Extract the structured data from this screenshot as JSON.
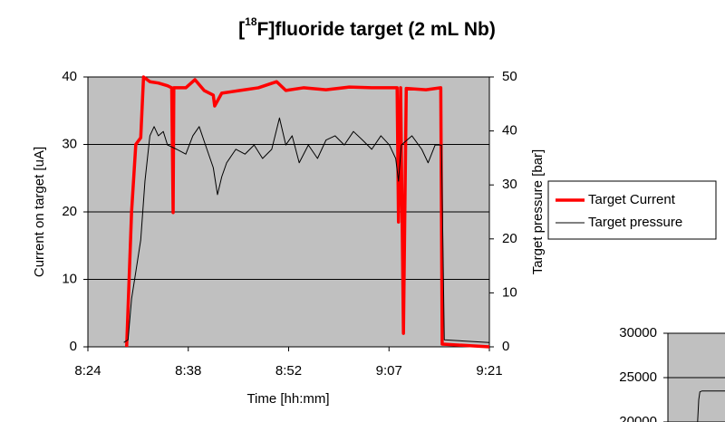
{
  "chart_data": [
    {
      "type": "line",
      "title": [
        "[",
        "18",
        "F]fluoride target (2 mL Nb)"
      ],
      "x_label": "Time [hh:mm]",
      "y_label": "Current on target [uA]",
      "y2_label": "Target pressure [bar]",
      "xlim": [
        504,
        561
      ],
      "xticks": [
        {
          "value": 504,
          "label": "8:24"
        },
        {
          "value": 518.25,
          "label": "8:38"
        },
        {
          "value": 532.5,
          "label": "8:52"
        },
        {
          "value": 546.75,
          "label": "9:07"
        },
        {
          "value": 561,
          "label": "9:21"
        }
      ],
      "ylim": [
        0,
        40
      ],
      "yticks": [
        0,
        10,
        20,
        30,
        40
      ],
      "y2lim": [
        0,
        50
      ],
      "y2ticks": [
        0,
        10,
        20,
        30,
        40,
        50
      ],
      "grid": true,
      "legend": "right",
      "background": "#c0c0c0",
      "series": [
        {
          "name": "Target Current",
          "color": "#ff0000",
          "axis": "y",
          "x": [
            509.5,
            510.2,
            510.8,
            511.5,
            511.9,
            512.8,
            514.0,
            515.3,
            515.9,
            516.1,
            516.2,
            517.9,
            519.2,
            520.5,
            521.8,
            522.0,
            523.0,
            525.6,
            528.2,
            530.8,
            532.1,
            534.6,
            537.8,
            541.1,
            544.3,
            547.9,
            548.1,
            548.4,
            548.8,
            549.2,
            552.0,
            554.1,
            554.3,
            561
          ],
          "values": [
            0,
            20,
            30,
            31,
            40,
            39.3,
            39.1,
            38.7,
            38.4,
            19.9,
            38.4,
            38.4,
            39.6,
            38.0,
            37.3,
            35.7,
            37.6,
            38.0,
            38.4,
            39.3,
            38.0,
            38.4,
            38.1,
            38.5,
            38.4,
            38.4,
            18.5,
            38.4,
            2.0,
            38.3,
            38.1,
            38.4,
            0.4,
            0
          ]
        },
        {
          "name": "Target pressure",
          "color": "#000000",
          "axis": "y2",
          "x": [
            509.1,
            509.7,
            510.2,
            510.8,
            511.5,
            512.1,
            512.8,
            513.4,
            514.0,
            514.7,
            515.3,
            516.6,
            517.9,
            518.9,
            519.8,
            520.9,
            521.8,
            522.4,
            523.0,
            523.7,
            525.0,
            526.3,
            527.6,
            528.8,
            530.1,
            531.2,
            532.1,
            533.0,
            534.0,
            535.3,
            536.6,
            537.8,
            539.1,
            540.4,
            541.7,
            543.0,
            544.3,
            545.6,
            546.8,
            547.7,
            548.1,
            548.5,
            550.0,
            551.4,
            552.3,
            553.3,
            554.2,
            554.6,
            561
          ],
          "values": [
            0.8,
            1.3,
            8.9,
            13.9,
            19.8,
            30.7,
            39.1,
            40.8,
            39.1,
            39.9,
            37.4,
            36.6,
            35.7,
            39.1,
            40.8,
            36.6,
            33.2,
            28.2,
            31.5,
            34.1,
            36.6,
            35.7,
            37.4,
            34.9,
            36.6,
            42.4,
            37.4,
            39.1,
            34.1,
            37.4,
            34.9,
            38.3,
            39.1,
            37.4,
            39.9,
            38.3,
            36.6,
            39.1,
            37.4,
            34.9,
            30.7,
            37.4,
            39.1,
            36.6,
            34.1,
            37.4,
            37.4,
            1.3,
            0.8
          ]
        }
      ]
    },
    {
      "type": "line",
      "xlim": [
        0,
        1
      ],
      "ylim": [
        20000,
        30000
      ],
      "yticks": [
        20000,
        25000,
        30000
      ],
      "grid": true,
      "background": "#c0c0c0",
      "series": [
        {
          "color": "#000000",
          "axis": "y",
          "x": [
            0.26,
            0.27,
            0.28,
            0.3,
            0.5
          ],
          "values": [
            20000,
            22500,
            23400,
            23500,
            23500
          ]
        }
      ]
    }
  ]
}
